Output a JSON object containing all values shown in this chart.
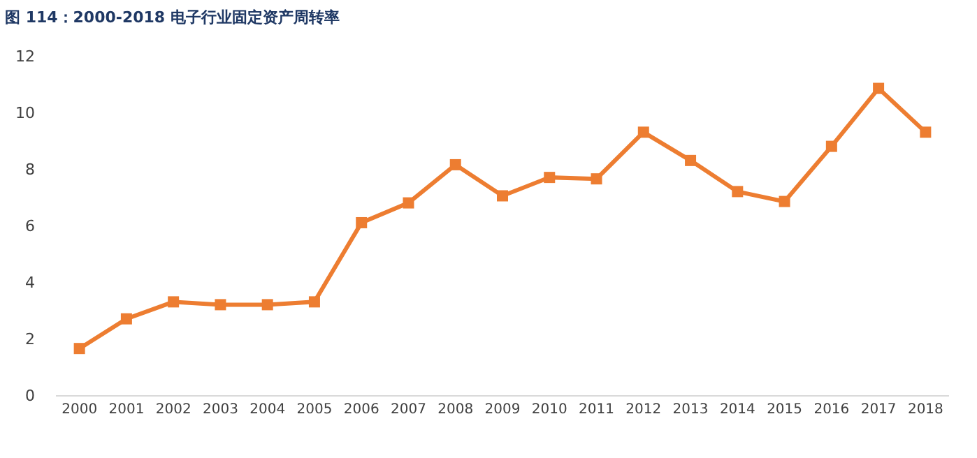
{
  "chart_data": {
    "type": "line",
    "title": "图 114：2000-2018 电子行业固定资产周转率",
    "categories": [
      "2000",
      "2001",
      "2002",
      "2003",
      "2004",
      "2005",
      "2006",
      "2007",
      "2008",
      "2009",
      "2010",
      "2011",
      "2012",
      "2013",
      "2014",
      "2015",
      "2016",
      "2017",
      "2018"
    ],
    "series": [
      {
        "color": "#ed7d31",
        "values": [
          1.65,
          2.7,
          3.3,
          3.2,
          3.2,
          3.3,
          6.1,
          6.8,
          8.15,
          7.05,
          7.7,
          7.65,
          9.3,
          8.3,
          7.2,
          6.85,
          8.8,
          10.85,
          9.3
        ]
      }
    ],
    "ylim": [
      0,
      12
    ],
    "yticks": [
      0,
      2,
      4,
      6,
      8,
      10,
      12
    ],
    "marker": "square",
    "line_style": "solid"
  }
}
